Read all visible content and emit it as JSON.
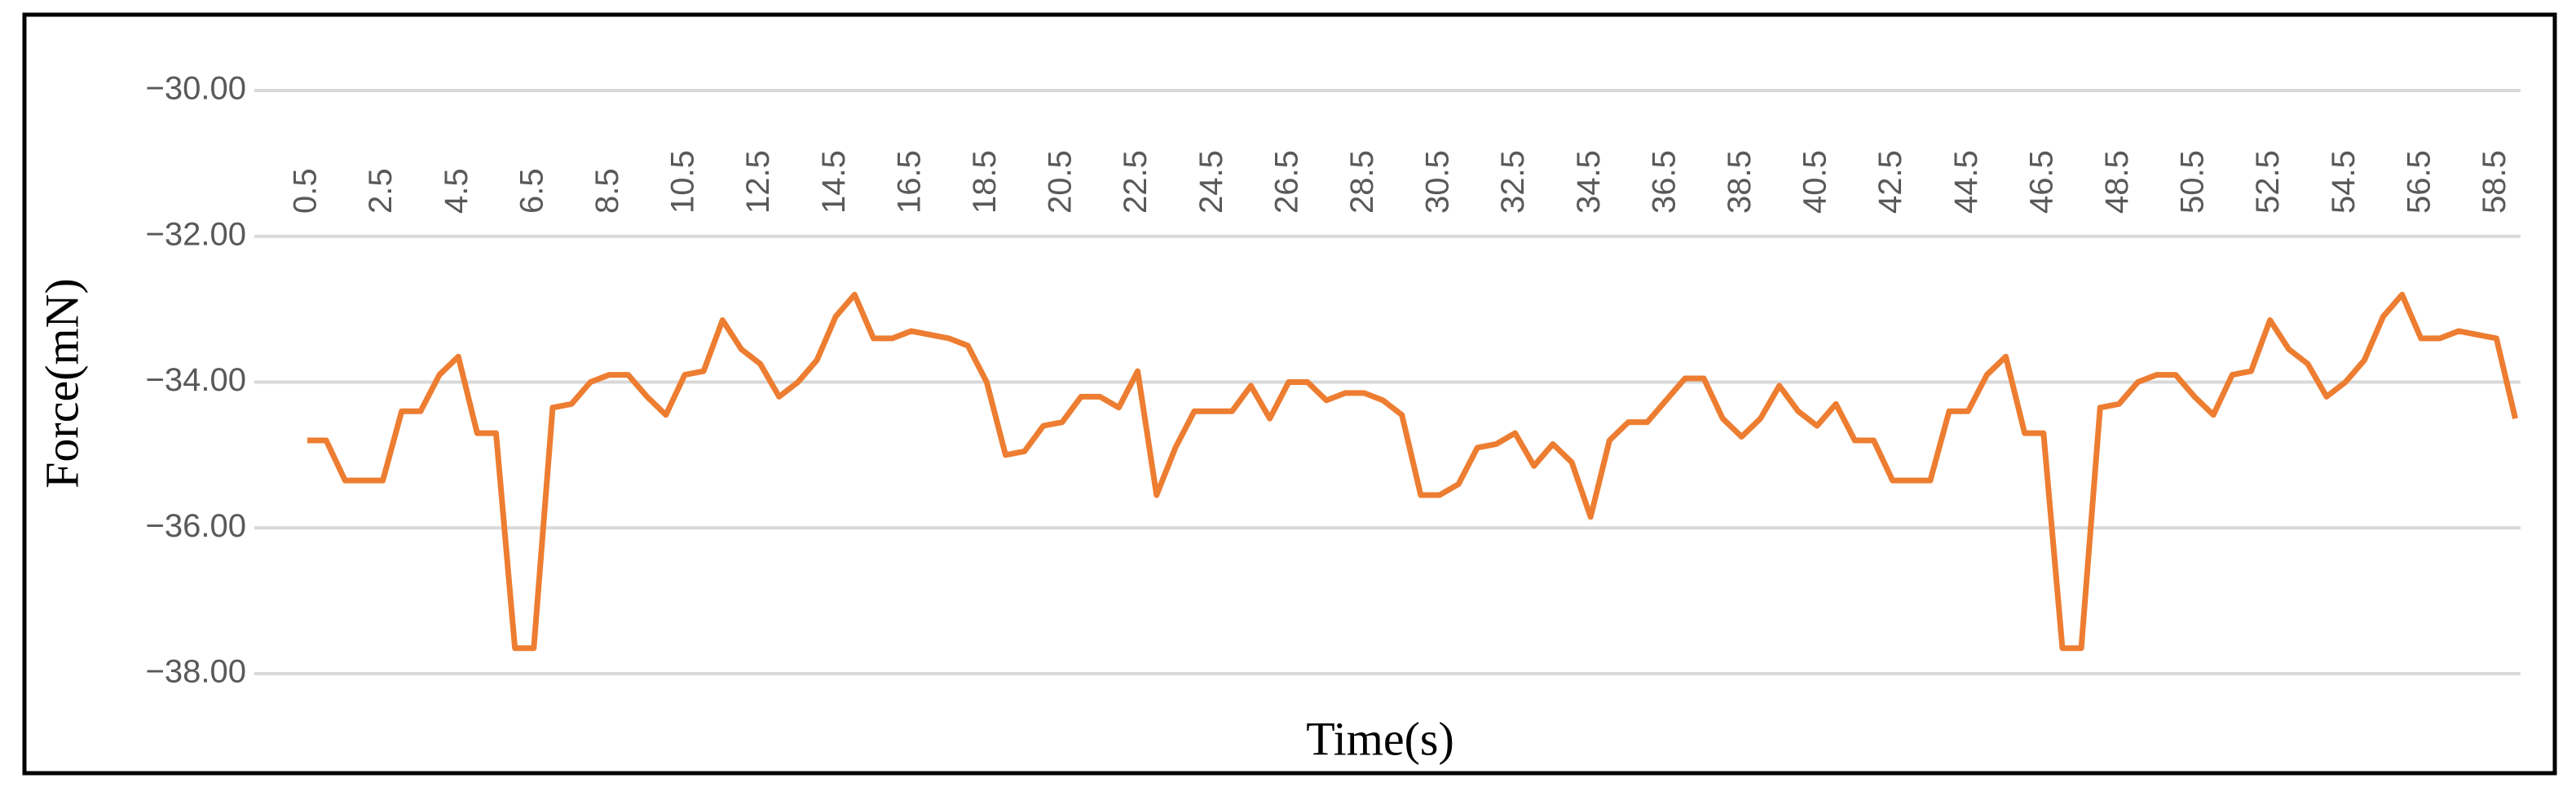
{
  "chart_data": {
    "type": "line",
    "x_label": "Time(s)",
    "y_label": "Force(mN)",
    "categories": [
      "0.5",
      null,
      null,
      null,
      "2.5",
      null,
      null,
      null,
      "4.5",
      null,
      null,
      null,
      "6.5",
      null,
      null,
      null,
      "8.5",
      null,
      null,
      null,
      "10.5",
      null,
      null,
      null,
      "12.5",
      null,
      null,
      null,
      "14.5",
      null,
      null,
      null,
      "16.5",
      null,
      null,
      null,
      "18.5",
      null,
      null,
      null,
      "20.5",
      null,
      null,
      null,
      "22.5",
      null,
      null,
      null,
      "24.5",
      null,
      null,
      null,
      "26.5",
      null,
      null,
      null,
      "28.5",
      null,
      null,
      null,
      "30.5",
      null,
      null,
      null,
      "32.5",
      null,
      null,
      null,
      "34.5",
      null,
      null,
      null,
      "36.5",
      null,
      null,
      null,
      "38.5",
      null,
      null,
      null,
      "40.5",
      null,
      null,
      null,
      "42.5",
      null,
      null,
      null,
      "44.5",
      null,
      null,
      null,
      "46.5",
      null,
      null,
      null,
      "48.5",
      null,
      null,
      null,
      "50.5",
      null,
      null,
      null,
      "52.5",
      null,
      null,
      null,
      "54.5",
      null,
      null,
      null,
      "56.5",
      null,
      null,
      null,
      "58.5",
      null
    ],
    "values": [
      -34.8,
      -34.8,
      -35.35,
      -35.35,
      -35.35,
      -34.4,
      -34.4,
      -33.9,
      -33.65,
      -34.7,
      -34.7,
      -37.65,
      -37.65,
      -34.35,
      -34.3,
      -34.0,
      -33.9,
      -33.9,
      -34.2,
      -34.45,
      -33.9,
      -33.85,
      -33.15,
      -33.55,
      -33.75,
      -34.2,
      -34.0,
      -33.7,
      -33.1,
      -32.8,
      -33.4,
      -33.4,
      -33.3,
      -33.35,
      -33.4,
      -33.5,
      -34.0,
      -35.0,
      -34.95,
      -34.6,
      -34.55,
      -34.2,
      -34.2,
      -34.35,
      -33.85,
      -35.55,
      -34.9,
      -34.4,
      -34.4,
      -34.4,
      -34.05,
      -34.5,
      -34.0,
      -34.0,
      -34.25,
      -34.15,
      -34.15,
      -34.25,
      -34.45,
      -35.55,
      -35.55,
      -35.4,
      -34.9,
      -34.85,
      -34.7,
      -35.15,
      -34.85,
      -35.1,
      -35.85,
      -34.8,
      -34.55,
      -34.55,
      -34.25,
      -33.95,
      -33.95,
      -34.5,
      -34.75,
      -34.5,
      -34.05,
      -34.4,
      -34.6,
      -34.3,
      -34.8,
      -34.8,
      -35.35,
      -35.35,
      -35.35,
      -34.4,
      -34.4,
      -33.9,
      -33.65,
      -34.7,
      -34.7,
      -37.65,
      -37.65,
      -34.35,
      -34.3,
      -34.0,
      -33.9,
      -33.9,
      -34.2,
      -34.45,
      -33.9,
      -33.85,
      -33.15,
      -33.55,
      -33.75,
      -34.2,
      -34.0,
      -33.7,
      -33.1,
      -32.8,
      -33.4,
      -33.4,
      -33.3,
      -33.35,
      -33.4,
      -34.5
    ],
    "color": "#ed7d31",
    "ylim": [
      -38,
      -30
    ],
    "yticks": [
      {
        "value": -38,
        "label": "−38.00"
      },
      {
        "value": -36,
        "label": "−36.00"
      },
      {
        "value": -34,
        "label": "−34.00"
      },
      {
        "value": -32,
        "label": "−32.00"
      },
      {
        "value": -30,
        "label": "−30.00"
      }
    ],
    "grid": true
  }
}
